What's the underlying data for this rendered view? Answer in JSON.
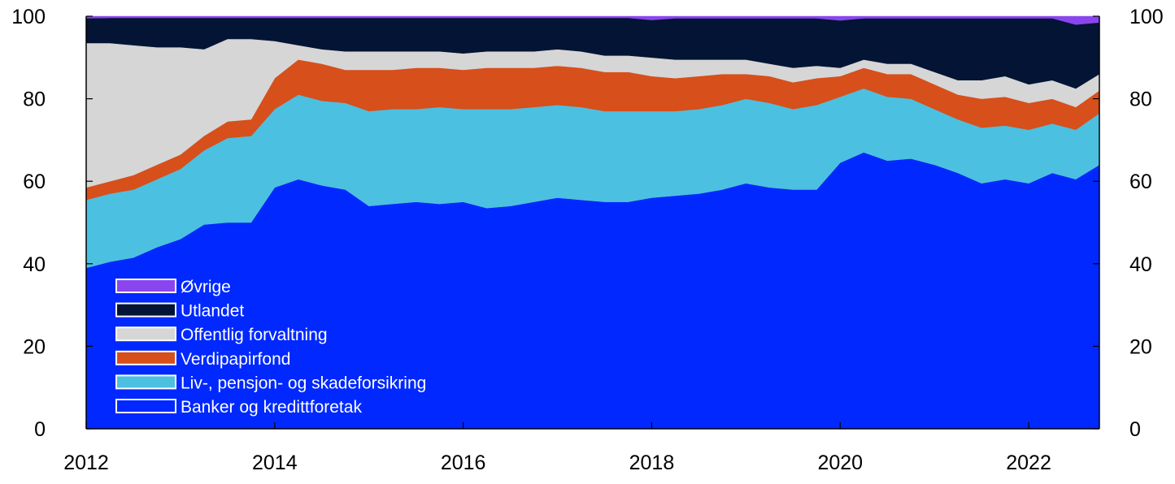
{
  "chart_data": {
    "type": "area",
    "stacked": true,
    "title": "",
    "xlabel": "",
    "ylabel": "",
    "xlim": [
      2012,
      2022.75
    ],
    "ylim": [
      0,
      100
    ],
    "x_ticks": [
      "2012",
      "2014",
      "2016",
      "2018",
      "2020",
      "2022"
    ],
    "y_ticks_left": [
      "0",
      "20",
      "40",
      "60",
      "80",
      "100"
    ],
    "y_ticks_right": [
      "0",
      "20",
      "40",
      "60",
      "80",
      "100"
    ],
    "legend_position": "bottom-left, inside plot",
    "x": [
      2012.0,
      2012.25,
      2012.5,
      2012.75,
      2013.0,
      2013.25,
      2013.5,
      2013.75,
      2014.0,
      2014.25,
      2014.5,
      2014.75,
      2015.0,
      2015.25,
      2015.5,
      2015.75,
      2016.0,
      2016.25,
      2016.5,
      2016.75,
      2017.0,
      2017.25,
      2017.5,
      2017.75,
      2018.0,
      2018.25,
      2018.5,
      2018.75,
      2019.0,
      2019.25,
      2019.5,
      2019.75,
      2020.0,
      2020.25,
      2020.5,
      2020.75,
      2021.0,
      2021.25,
      2021.5,
      2021.75,
      2022.0,
      2022.25,
      2022.5,
      2022.75
    ],
    "series": [
      {
        "name": "Banker og kredittforetak",
        "color": "#0028ff",
        "values": [
          39,
          40.5,
          41.5,
          44,
          46,
          49.5,
          50,
          50,
          58.5,
          60.5,
          59,
          58,
          54,
          54.5,
          55,
          54.5,
          55,
          53.5,
          54,
          55,
          56,
          55.5,
          55,
          55,
          56,
          56.5,
          57,
          58,
          59.5,
          58.5,
          58,
          58,
          64.5,
          67,
          65,
          65.5,
          64,
          62,
          59.5,
          60.5,
          59.5,
          62,
          60.5,
          64
        ]
      },
      {
        "name": "Liv-, pensjon- og skadeforsikring",
        "color": "#4cc0e0",
        "values": [
          16.5,
          16.5,
          16.5,
          16.5,
          17,
          18,
          20.5,
          21,
          19,
          20.5,
          20.5,
          21,
          23,
          23,
          22.5,
          23.5,
          22.5,
          24,
          23.5,
          23,
          22.5,
          22.5,
          22,
          22,
          21,
          20.5,
          20.5,
          20.5,
          20.5,
          20.5,
          19.5,
          20.5,
          16,
          15.5,
          15.5,
          14.5,
          13.5,
          13,
          13.5,
          13,
          13,
          12,
          12,
          12.5
        ]
      },
      {
        "name": "Verdipapirfond",
        "color": "#d74f1b",
        "values": [
          3,
          3,
          3.5,
          3.5,
          3.5,
          3.5,
          4,
          4,
          7.5,
          8.5,
          9,
          8,
          10,
          9.5,
          10,
          9.5,
          9.5,
          10,
          10,
          9.5,
          9.5,
          9.5,
          9.5,
          9.5,
          8.5,
          8,
          8,
          7.5,
          6,
          6.5,
          6.5,
          6.5,
          5,
          5,
          5.5,
          6,
          6,
          6,
          7,
          7,
          6.5,
          6,
          5.5,
          5.5
        ]
      },
      {
        "name": "Offentlig forvaltning",
        "color": "#d6d6d6",
        "values": [
          35,
          33.5,
          31.5,
          28.5,
          26,
          21,
          20,
          19.5,
          9,
          3.5,
          3.5,
          4.5,
          4.5,
          4.5,
          4,
          4,
          4,
          4,
          4,
          4,
          4,
          4,
          4,
          4,
          4.5,
          4.5,
          4,
          3.5,
          3.5,
          3,
          3.5,
          3,
          2,
          2,
          2.5,
          2.5,
          3,
          3.5,
          4.5,
          5,
          4.5,
          4.5,
          4.5,
          4
        ]
      },
      {
        "name": "Utlandet",
        "color": "#031434",
        "values": [
          6,
          6.1,
          6.6,
          7.1,
          7.1,
          7.6,
          5.1,
          5.1,
          5.6,
          6.6,
          7.6,
          8.1,
          8.1,
          8.1,
          8.1,
          8.1,
          8.6,
          8.1,
          8.1,
          8.1,
          7.6,
          8.1,
          9.1,
          9.1,
          9.1,
          10,
          10,
          10,
          10,
          11,
          12,
          11.5,
          11.5,
          10,
          11,
          11,
          13,
          15,
          15,
          14,
          16,
          15,
          15.5,
          12.5
        ]
      },
      {
        "name": "Øvrige",
        "color": "#8a46ee",
        "values": [
          0.5,
          0.4,
          0.4,
          0.4,
          0.4,
          0.4,
          0.4,
          0.4,
          0.4,
          0.4,
          0.4,
          0.4,
          0.4,
          0.4,
          0.4,
          0.4,
          0.4,
          0.4,
          0.4,
          0.4,
          0.4,
          0.4,
          0.4,
          0.4,
          0.9,
          1,
          0.5,
          0.5,
          0.5,
          0.5,
          0.5,
          0.5,
          1,
          0.5,
          0.5,
          0.5,
          0.5,
          0.5,
          0.5,
          0.5,
          0.5,
          0.5,
          2,
          1.5
        ]
      }
    ],
    "legend": [
      {
        "label": "Øvrige",
        "color": "#8a46ee"
      },
      {
        "label": "Utlandet",
        "color": "#031434"
      },
      {
        "label": "Offentlig forvaltning",
        "color": "#d6d6d6"
      },
      {
        "label": "Verdipapirfond",
        "color": "#d74f1b"
      },
      {
        "label": "Liv-, pensjon- og skadeforsikring",
        "color": "#4cc0e0"
      },
      {
        "label": "Banker og kredittforetak",
        "color": "#0028ff"
      }
    ]
  }
}
